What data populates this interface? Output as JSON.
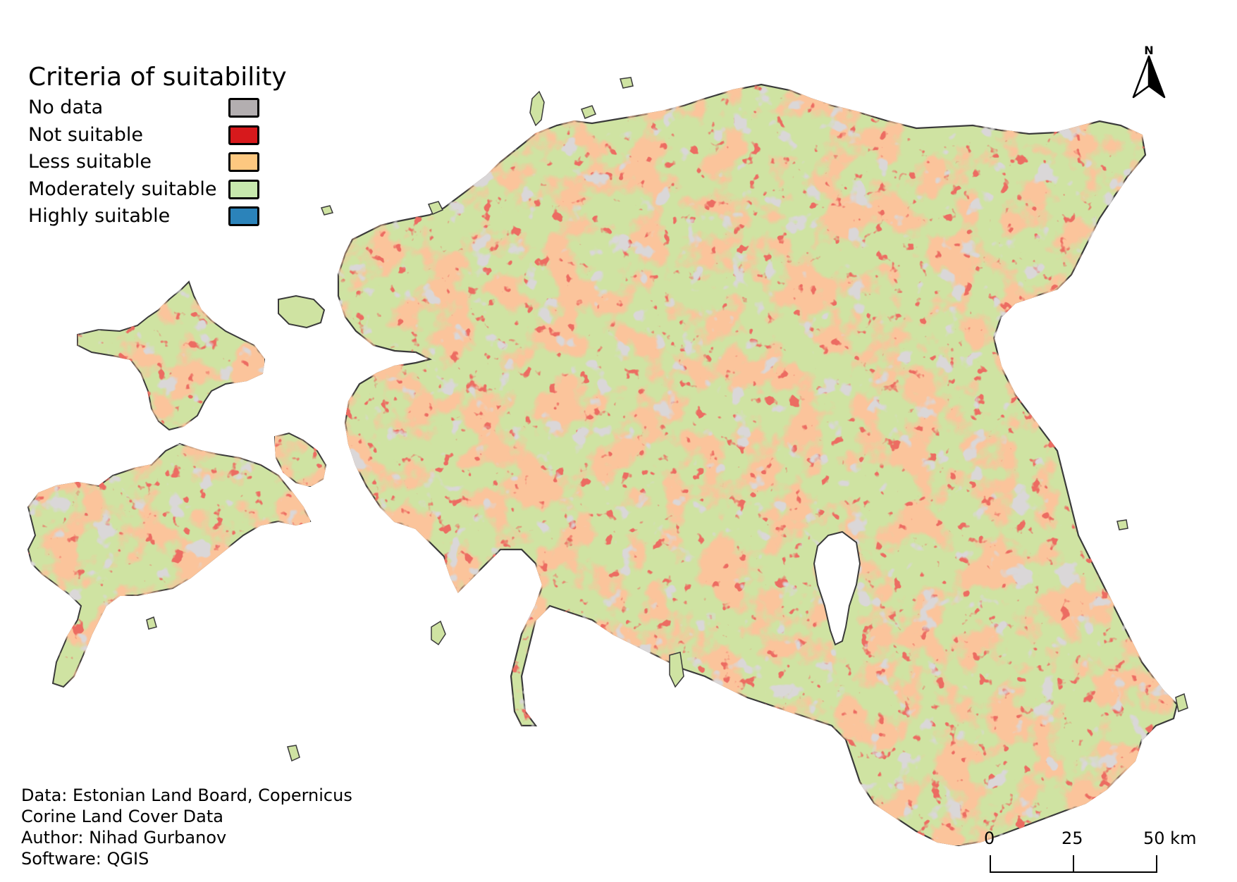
{
  "legend": {
    "title": "Criteria of suitability",
    "items": [
      {
        "label": "No data",
        "color": "#b3aeb0"
      },
      {
        "label": "Not suitable",
        "color": "#d7191c"
      },
      {
        "label": "Less suitable",
        "color": "#fdc880"
      },
      {
        "label": "Moderately suitable",
        "color": "#c7e8ad"
      },
      {
        "label": "Highly suitable",
        "color": "#2b83ba"
      }
    ]
  },
  "credits": {
    "line1": "Data: Estonian Land Board, Copernicus",
    "line2": "Corine Land Cover Data",
    "line3": "Author: Nihad Gurbanov",
    "line4": "Software: QGIS"
  },
  "north_arrow": {
    "letter": "N",
    "icon": "north-arrow-icon"
  },
  "scale_bar": {
    "label_0": "0",
    "label_25": "25",
    "label_50": "50 km"
  },
  "colors": {
    "map_base": "#cfe3a2",
    "map_orange": "#f6a060",
    "map_outline": "#3a3a3a",
    "water": "#ffffff"
  }
}
